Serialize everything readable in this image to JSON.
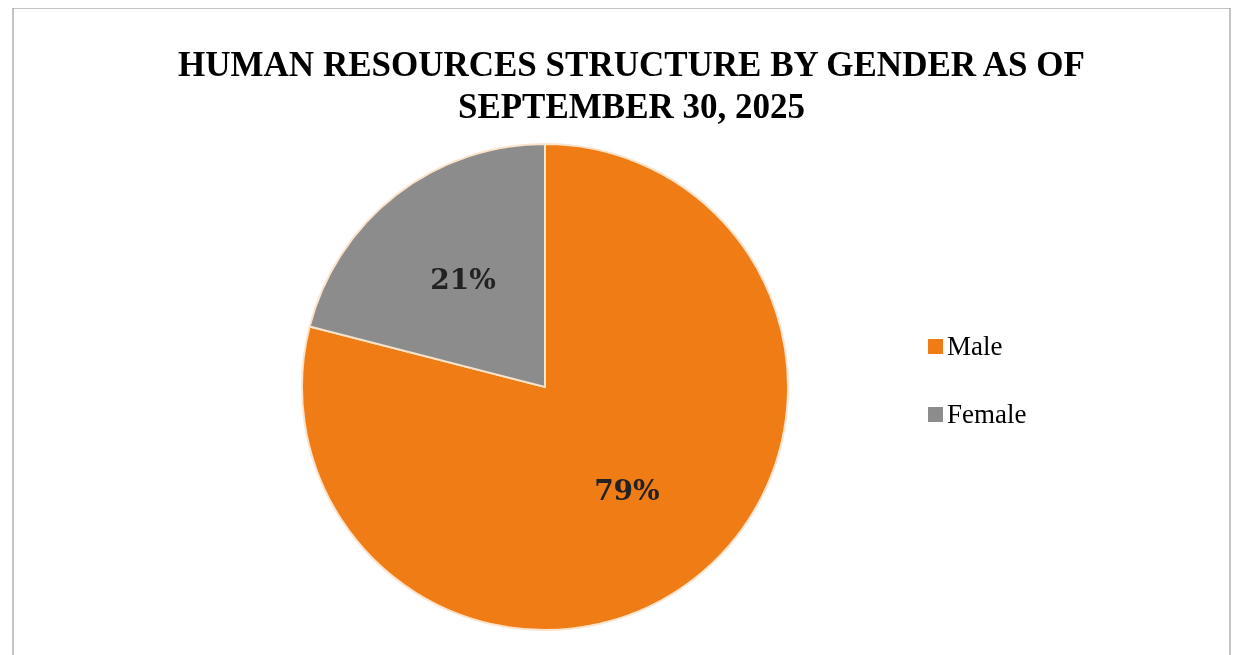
{
  "chart_data": {
    "type": "pie",
    "title": "HUMAN RESOURCES STRUCTURE BY GENDER AS OF SEPTEMBER 30, 2025",
    "categories": [
      "Male",
      "Female"
    ],
    "values": [
      79,
      21
    ],
    "colors": [
      "#f07c16",
      "#8c8c8c"
    ],
    "value_labels": [
      "79%",
      "21%"
    ],
    "legend": "right"
  }
}
